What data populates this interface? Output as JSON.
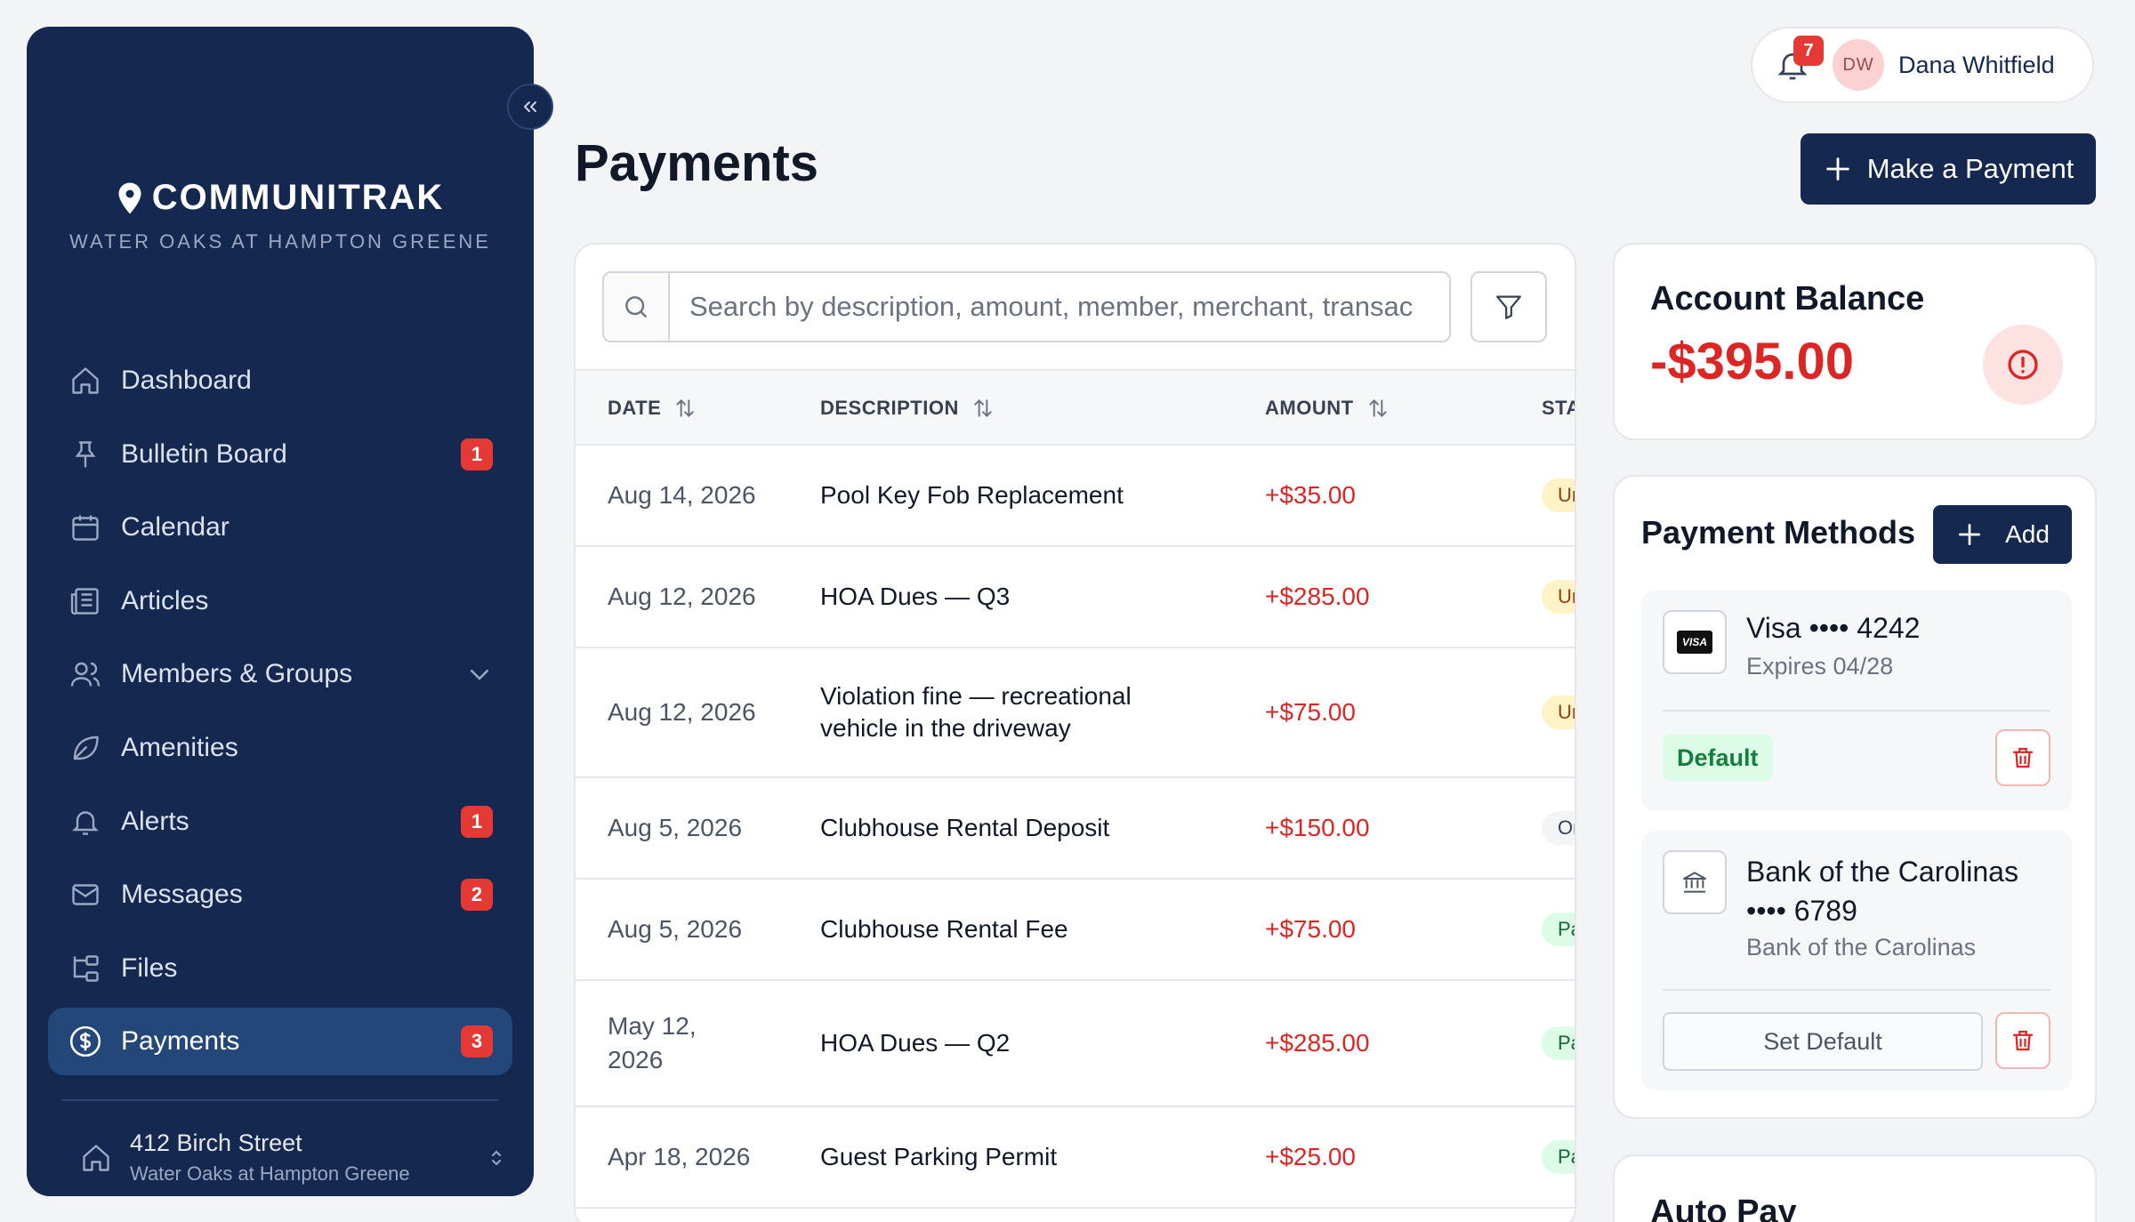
{
  "brand": {
    "name": "COMMUNITRAK",
    "community": "WATER OAKS AT HAMPTON GREENE"
  },
  "sidebar": {
    "items": [
      {
        "label": "Dashboard",
        "icon": "home-icon",
        "badge": ""
      },
      {
        "label": "Bulletin Board",
        "icon": "pin-icon",
        "badge": "1"
      },
      {
        "label": "Calendar",
        "icon": "calendar-icon",
        "badge": ""
      },
      {
        "label": "Articles",
        "icon": "newspaper-icon",
        "badge": ""
      },
      {
        "label": "Members & Groups",
        "icon": "users-icon",
        "badge": ""
      },
      {
        "label": "Amenities",
        "icon": "leaf-icon",
        "badge": ""
      },
      {
        "label": "Alerts",
        "icon": "bell-icon",
        "badge": "1"
      },
      {
        "label": "Messages",
        "icon": "mail-icon",
        "badge": "2"
      },
      {
        "label": "Files",
        "icon": "folder-tree-icon",
        "badge": ""
      },
      {
        "label": "Payments",
        "icon": "dollar-circle-icon",
        "badge": "3"
      }
    ],
    "property": {
      "address": "412 Birch Street",
      "community": "Water Oaks at Hampton Greene"
    }
  },
  "header": {
    "notification_count": "7",
    "user_initials": "DW",
    "user_name": "Dana Whitfield"
  },
  "page": {
    "title": "Payments",
    "make_payment_label": "Make a Payment"
  },
  "search": {
    "placeholder": "Search by description, amount, member, merchant, transac"
  },
  "table": {
    "columns": {
      "date": "DATE",
      "description": "DESCRIPTION",
      "amount": "AMOUNT",
      "status": "STATUS"
    },
    "rows": [
      {
        "date": "Aug 14, 2026",
        "description": "Pool Key Fob Replacement",
        "amount": "+$35.00",
        "status": "Unpaid"
      },
      {
        "date": "Aug 12, 2026",
        "description": "HOA Dues — Q3",
        "amount": "+$285.00",
        "status": "Unpaid"
      },
      {
        "date": "Aug 12, 2026",
        "description": "Violation fine — recreational vehicle in the driveway",
        "amount": "+$75.00",
        "status": "Unpaid"
      },
      {
        "date": "Aug 5, 2026",
        "description": "Clubhouse Rental Deposit",
        "amount": "+$150.00",
        "status": "On Hold"
      },
      {
        "date": "Aug 5, 2026",
        "description": "Clubhouse Rental Fee",
        "amount": "+$75.00",
        "status": "Paid"
      },
      {
        "date": "May 12, 2026",
        "description": "HOA Dues — Q2",
        "amount": "+$285.00",
        "status": "Paid"
      },
      {
        "date": "Apr 18, 2026",
        "description": "Guest Parking Permit",
        "amount": "+$25.00",
        "status": "Paid"
      }
    ]
  },
  "balance": {
    "title": "Account Balance",
    "amount": "-$395.00"
  },
  "payment_methods": {
    "title": "Payment Methods",
    "add_label": "Add",
    "methods": [
      {
        "name": "Visa •••• 4242",
        "sub": "Expires 04/28",
        "default_label": "Default",
        "brand_mark": "VISA"
      },
      {
        "name_line1": "Bank of the Carolinas",
        "name_line2": "•••• 6789",
        "sub": "Bank of the Carolinas",
        "set_default_label": "Set Default"
      }
    ]
  },
  "autopay": {
    "title": "Auto Pay"
  },
  "colors": {
    "sidebar_bg": "#142850",
    "accent": "#142850",
    "negative": "#dc2626",
    "badge": "#e53935"
  }
}
